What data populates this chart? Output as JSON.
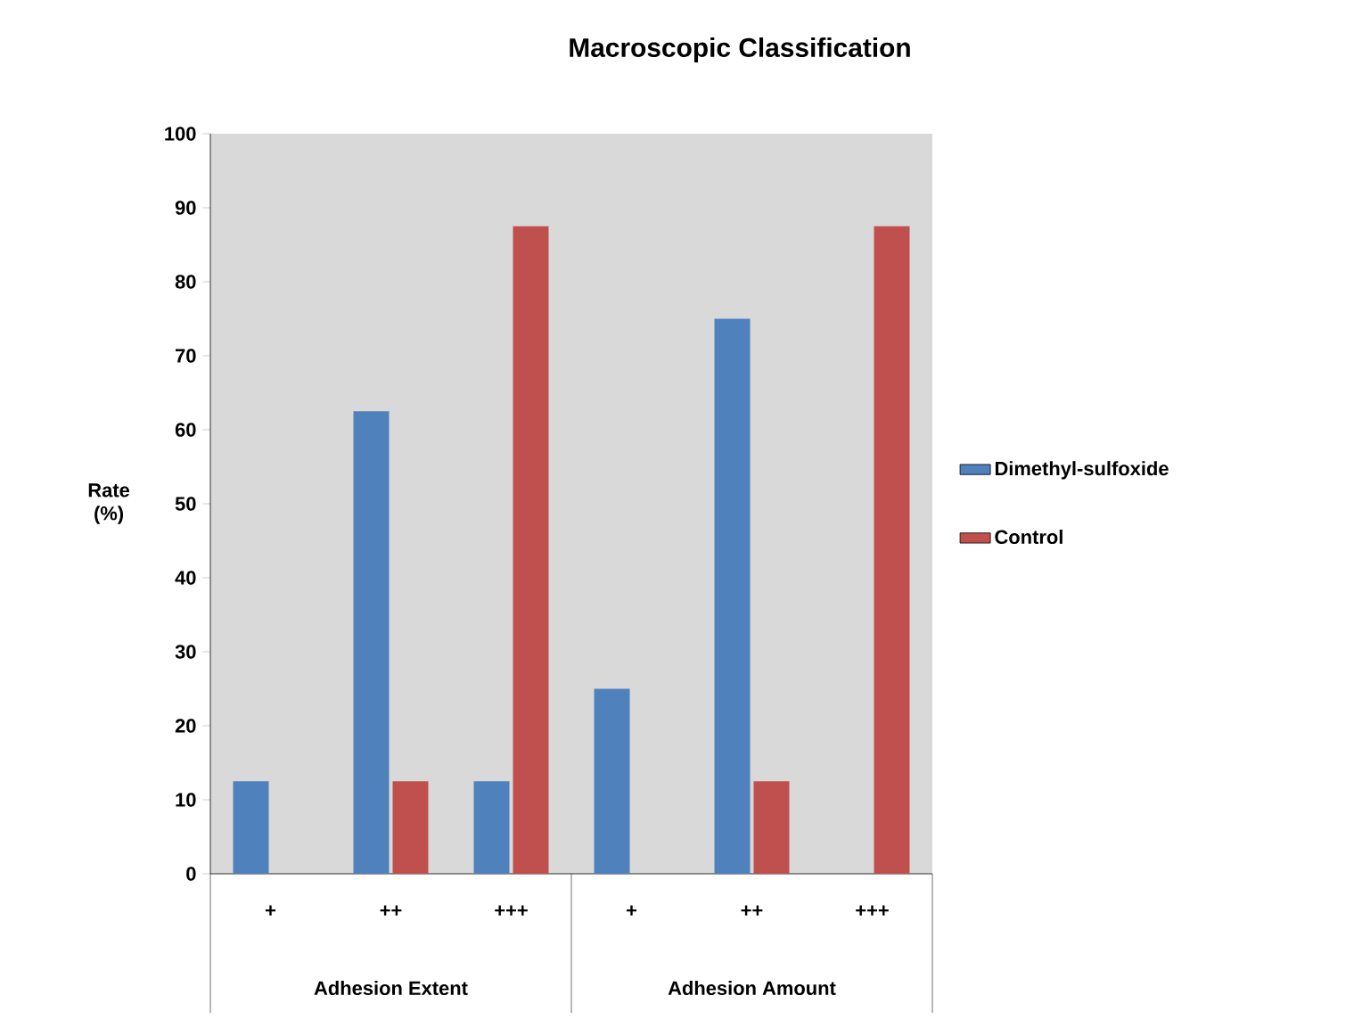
{
  "chart_data": {
    "type": "bar",
    "title": "Macroscopic Classification",
    "ylabel": "Rate (%)",
    "categories": [
      "+",
      "++",
      "+++",
      "+",
      "++",
      "+++"
    ],
    "series": [
      {
        "name": "Dimethyl-sulfoxide",
        "color": "#4f81bd",
        "values": [
          12.5,
          62.5,
          12.5,
          25,
          75,
          0
        ]
      },
      {
        "name": "Control",
        "color": "#c0504d",
        "values": [
          0,
          12.5,
          87.5,
          0,
          12.5,
          87.5
        ]
      }
    ],
    "annotations": [
      "Adhesion Extent",
      "Adhesion Amount"
    ],
    "ylim": [
      0,
      100
    ],
    "yticks": [
      0,
      10,
      20,
      30,
      40,
      50,
      60,
      70,
      80,
      90,
      100
    ],
    "grid": false,
    "legend": "right"
  }
}
